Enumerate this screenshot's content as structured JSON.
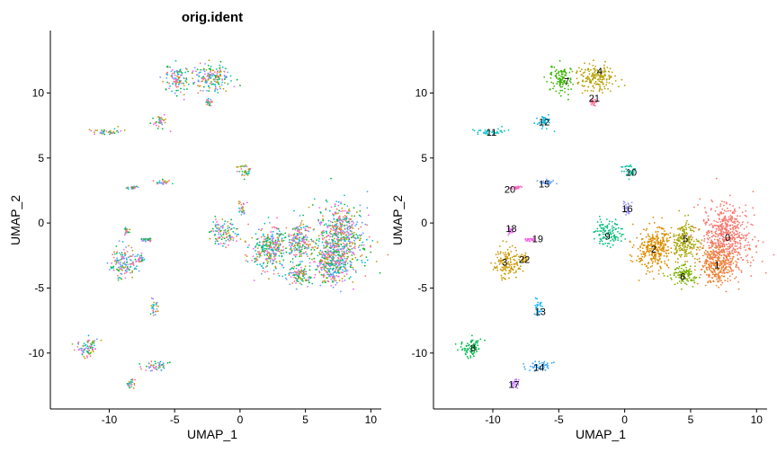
{
  "chart_data": [
    {
      "type": "scatter",
      "title": "orig.ident",
      "xlabel": "UMAP_1",
      "ylabel": "UMAP_2",
      "xlim": [
        -14.5,
        10.8
      ],
      "ylim": [
        -14.3,
        14.8
      ],
      "xticks": [
        -10,
        -5,
        0,
        5,
        10
      ],
      "yticks": [
        -10,
        -5,
        0,
        5,
        10
      ],
      "xtick_labels": [
        "-10",
        "-5",
        "0",
        "5",
        "10"
      ],
      "ytick_labels": [
        "-10",
        "-5",
        "0",
        "5",
        "10"
      ],
      "grid": false,
      "legend": "none",
      "color_mode": "mixed",
      "sample_colors": [
        "#F8766D",
        "#B79F00",
        "#00BA38",
        "#00BFC4",
        "#619CFF",
        "#F564E3"
      ]
    },
    {
      "type": "scatter",
      "title": "",
      "xlabel": "UMAP_1",
      "ylabel": "UMAP_2",
      "xlim": [
        -14.5,
        10.8
      ],
      "ylim": [
        -14.3,
        14.8
      ],
      "xticks": [
        -10,
        -5,
        0,
        5,
        10
      ],
      "yticks": [
        -10,
        -5,
        0,
        5,
        10
      ],
      "xtick_labels": [
        "-10",
        "-5",
        "0",
        "5",
        "10"
      ],
      "ytick_labels": [
        "-10",
        "-5",
        "0",
        "5",
        "10"
      ],
      "grid": false,
      "legend": "none",
      "color_mode": "cluster",
      "clusters": [
        {
          "id": "0",
          "x": 7.7,
          "y": -1.1,
          "sx": 1.6,
          "sy": 2.4,
          "color": "#F8766D"
        },
        {
          "id": "1",
          "x": 7.0,
          "y": -3.2,
          "sx": 1.4,
          "sy": 1.5,
          "color": "#EA8331"
        },
        {
          "id": "2",
          "x": 2.3,
          "y": -2.0,
          "sx": 1.4,
          "sy": 1.6,
          "color": "#DB8E00"
        },
        {
          "id": "3",
          "x": -8.9,
          "y": -3.0,
          "sx": 0.9,
          "sy": 1.1,
          "color": "#C99800"
        },
        {
          "id": "4",
          "x": -2.1,
          "y": 11.2,
          "sx": 1.4,
          "sy": 0.9,
          "color": "#B79F00"
        },
        {
          "id": "5",
          "x": 4.6,
          "y": -1.3,
          "sx": 0.9,
          "sy": 1.5,
          "color": "#A3A500"
        },
        {
          "id": "6",
          "x": 4.4,
          "y": -4.0,
          "sx": 1.0,
          "sy": 0.8,
          "color": "#7CAE00"
        },
        {
          "id": "7",
          "x": -4.8,
          "y": 11.0,
          "sx": 0.9,
          "sy": 0.9,
          "color": "#39B600"
        },
        {
          "id": "8",
          "x": -11.6,
          "y": -9.6,
          "sx": 0.9,
          "sy": 0.6,
          "color": "#00BB4E"
        },
        {
          "id": "9",
          "x": -1.3,
          "y": -0.8,
          "sx": 0.9,
          "sy": 0.9,
          "color": "#00BF7D"
        },
        {
          "id": "10",
          "x": 0.3,
          "y": 4.0,
          "sx": 0.5,
          "sy": 0.5,
          "color": "#00C1A3"
        },
        {
          "id": "11",
          "x": -10.2,
          "y": 7.0,
          "sx": 1.1,
          "sy": 0.25,
          "color": "#00BFC4"
        },
        {
          "id": "12",
          "x": -6.1,
          "y": 7.8,
          "sx": 0.5,
          "sy": 0.5,
          "color": "#00BAE0"
        },
        {
          "id": "13",
          "x": -6.5,
          "y": -6.5,
          "sx": 0.35,
          "sy": 0.6,
          "color": "#00B0F6"
        },
        {
          "id": "14",
          "x": -6.5,
          "y": -11.0,
          "sx": 1.0,
          "sy": 0.35,
          "color": "#35A2FF"
        },
        {
          "id": "15",
          "x": -6.0,
          "y": 3.1,
          "sx": 0.6,
          "sy": 0.15,
          "color": "#619CFF"
        },
        {
          "id": "16",
          "x": 0.2,
          "y": 1.0,
          "sx": 0.25,
          "sy": 0.6,
          "color": "#9590FF"
        },
        {
          "id": "17",
          "x": -8.3,
          "y": -12.3,
          "sx": 0.3,
          "sy": 0.4,
          "color": "#C77CFF"
        },
        {
          "id": "18",
          "x": -8.7,
          "y": -0.6,
          "sx": 0.15,
          "sy": 0.3,
          "color": "#E76BF3"
        },
        {
          "id": "19",
          "x": -7.2,
          "y": -1.3,
          "sx": 0.4,
          "sy": 0.15,
          "color": "#F763E0"
        },
        {
          "id": "20",
          "x": -8.3,
          "y": 2.7,
          "sx": 0.5,
          "sy": 0.1,
          "color": "#FF62BC"
        },
        {
          "id": "21",
          "x": -2.4,
          "y": 9.3,
          "sx": 0.25,
          "sy": 0.25,
          "color": "#FF6C91"
        },
        {
          "id": "22",
          "x": -7.6,
          "y": -2.8,
          "sx": 0.3,
          "sy": 0.4,
          "color": "#C99800"
        }
      ],
      "cluster_labels": [
        {
          "text": "0",
          "x": 7.8,
          "y": -1.1
        },
        {
          "text": "1",
          "x": 7.0,
          "y": -3.2
        },
        {
          "text": "2",
          "x": 2.2,
          "y": -2.0
        },
        {
          "text": "3",
          "x": -9.1,
          "y": -3.0
        },
        {
          "text": "4",
          "x": -1.9,
          "y": 11.7
        },
        {
          "text": "5",
          "x": 4.6,
          "y": -1.2
        },
        {
          "text": "6",
          "x": 4.4,
          "y": -4.1
        },
        {
          "text": "7",
          "x": -4.4,
          "y": 10.9
        },
        {
          "text": "8",
          "x": -11.5,
          "y": -9.6
        },
        {
          "text": "9",
          "x": -1.3,
          "y": -1.0
        },
        {
          "text": "10",
          "x": 0.5,
          "y": 3.9
        },
        {
          "text": "11",
          "x": -10.1,
          "y": 7.0
        },
        {
          "text": "12",
          "x": -6.1,
          "y": 7.8
        },
        {
          "text": "13",
          "x": -6.4,
          "y": -6.8
        },
        {
          "text": "14",
          "x": -6.5,
          "y": -11.1
        },
        {
          "text": "15",
          "x": -6.1,
          "y": 3.0
        },
        {
          "text": "16",
          "x": 0.2,
          "y": 1.1
        },
        {
          "text": "17",
          "x": -8.4,
          "y": -12.4
        },
        {
          "text": "18",
          "x": -8.6,
          "y": -0.4
        },
        {
          "text": "19",
          "x": -6.6,
          "y": -1.2
        },
        {
          "text": "20",
          "x": -8.7,
          "y": 2.6
        },
        {
          "text": "21",
          "x": -2.3,
          "y": 9.6
        },
        {
          "text": "22",
          "x": -7.6,
          "y": -2.8
        }
      ]
    }
  ]
}
